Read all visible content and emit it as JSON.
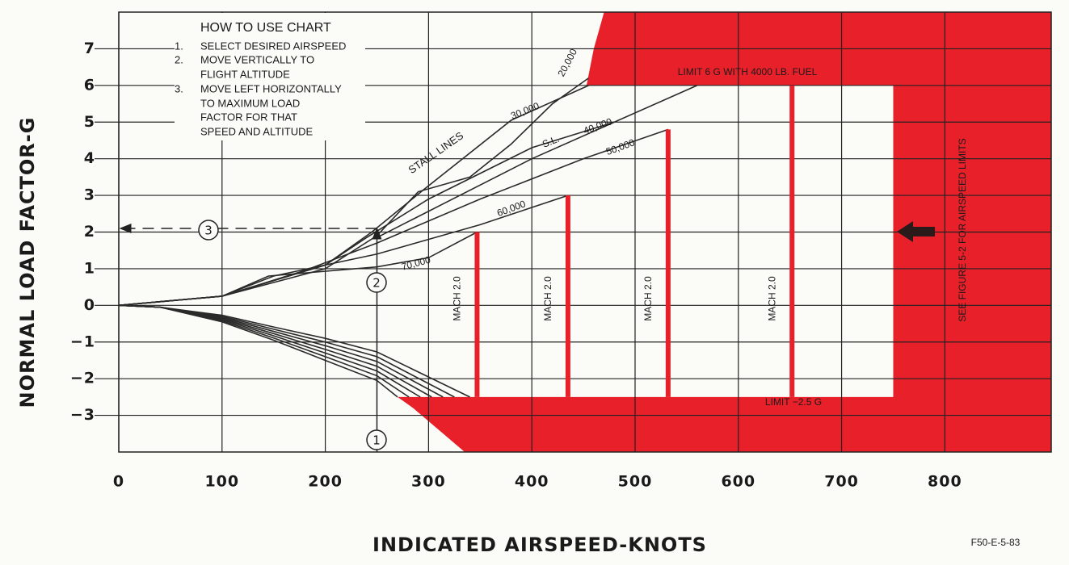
{
  "chart_data": {
    "type": "line",
    "x_label": "INDICATED AIRSPEED-KNOTS",
    "y_label": "NORMAL LOAD FACTOR-G",
    "xlim": [
      0,
      903
    ],
    "ylim": [
      -4,
      8
    ],
    "xticks": [
      0,
      100,
      200,
      300,
      400,
      500,
      600,
      700,
      800
    ],
    "yticks": [
      {
        "value": -3,
        "label": "−3"
      },
      {
        "value": -2,
        "label": "−2"
      },
      {
        "value": -1,
        "label": "−1"
      },
      0,
      1,
      2,
      3,
      4,
      5,
      6,
      7
    ],
    "grid": true,
    "line_color": "#2a2a2a",
    "series": [
      {
        "name": "20,000",
        "x": [
          0,
          100,
          200,
          250,
          290,
          340,
          380,
          420,
          455
        ],
        "values": [
          0,
          0.25,
          1.0,
          1.9,
          3.1,
          3.5,
          4.4,
          5.5,
          6.2
        ]
      },
      {
        "name": "30,000",
        "x": [
          0,
          100,
          200,
          245,
          295,
          380,
          455
        ],
        "values": [
          0,
          0.25,
          1.1,
          2.0,
          3.15,
          5.05,
          6.0
        ]
      },
      {
        "name": "S.L.",
        "x": [
          250,
          400,
          560
        ],
        "values": [
          1.85,
          4.0,
          6.0
        ]
      },
      {
        "name": "40,000",
        "x": [
          0,
          100,
          200,
          240,
          300,
          400,
          480
        ],
        "values": [
          0,
          0.25,
          1.1,
          1.85,
          2.9,
          4.3,
          5.0
        ]
      },
      {
        "name": "50,000",
        "x": [
          0,
          100,
          180,
          250,
          350,
          450,
          532
        ],
        "values": [
          0,
          0.25,
          0.95,
          1.7,
          2.9,
          4.0,
          4.8
        ]
      },
      {
        "name": "60,000",
        "x": [
          0,
          100,
          150,
          250,
          350,
          435
        ],
        "values": [
          0,
          0.25,
          0.8,
          1.4,
          2.2,
          3.0
        ]
      },
      {
        "name": "70,000",
        "x": [
          0,
          100,
          145,
          250,
          300,
          347
        ],
        "values": [
          0,
          0.25,
          0.8,
          1.05,
          1.3,
          2.0
        ]
      }
    ],
    "negative_stall": [
      {
        "x": [
          0,
          40,
          100,
          150,
          200,
          250,
          270
        ],
        "values": [
          0,
          -0.05,
          -0.45,
          -0.95,
          -1.5,
          -2.05,
          -2.5
        ]
      },
      {
        "x": [
          0,
          40,
          100,
          150,
          200,
          250,
          281
        ],
        "values": [
          0,
          -0.05,
          -0.42,
          -0.89,
          -1.4,
          -1.92,
          -2.5
        ]
      },
      {
        "x": [
          0,
          40,
          100,
          150,
          200,
          250,
          292
        ],
        "values": [
          0,
          -0.05,
          -0.39,
          -0.83,
          -1.3,
          -1.79,
          -2.5
        ]
      },
      {
        "x": [
          0,
          40,
          100,
          150,
          200,
          250,
          303
        ],
        "values": [
          0,
          -0.05,
          -0.36,
          -0.77,
          -1.2,
          -1.66,
          -2.5
        ]
      },
      {
        "x": [
          0,
          40,
          100,
          150,
          200,
          250,
          314
        ],
        "values": [
          0,
          -0.05,
          -0.33,
          -0.71,
          -1.1,
          -1.53,
          -2.5
        ]
      },
      {
        "x": [
          0,
          40,
          100,
          150,
          200,
          250,
          325
        ],
        "values": [
          0,
          -0.05,
          -0.3,
          -0.65,
          -1.0,
          -1.4,
          -2.5
        ]
      },
      {
        "x": [
          0,
          40,
          100,
          150,
          200,
          250,
          340
        ],
        "values": [
          0,
          -0.05,
          -0.27,
          -0.59,
          -0.9,
          -1.27,
          -2.5
        ]
      }
    ],
    "limit_region": {
      "color": "#e8202a",
      "x": [
        453,
        460,
        470,
        903,
        903,
        335,
        310,
        285,
        270,
        750,
        750
      ],
      "values": [
        6,
        7,
        8,
        8,
        -4,
        -4,
        -3.4,
        -2.8,
        -2.5,
        -2.5,
        6
      ]
    },
    "limit_low": -2.5,
    "mach_lines": [
      {
        "x": 347,
        "top": 2.0,
        "label": "MACH 2.0"
      },
      {
        "x": 435,
        "top": 3.0,
        "label": "MACH 2.0"
      },
      {
        "x": 532,
        "top": 4.8,
        "label": "MACH 2.0"
      },
      {
        "x": 652,
        "top": 6.0,
        "label": "MACH 2.0"
      }
    ],
    "example": {
      "airspeed": 250,
      "load_factor": 2.1
    },
    "annotations": {
      "stall_lines": "STALL LINES",
      "limit_high": "LIMIT 6 G WITH 4000 LB. FUEL",
      "limit_low": "LIMIT −2.5 G",
      "see_figure": "SEE FIGURE 5-2 FOR AIRSPEED LIMITS",
      "figure_id": "F50-E-5-83"
    },
    "steps": [
      "1",
      "2",
      "3"
    ],
    "instructions": {
      "title": "HOW TO USE CHART",
      "items": [
        {
          "number": "1.",
          "lines": [
            "SELECT DESIRED AIRSPEED"
          ]
        },
        {
          "number": "2.",
          "lines": [
            "MOVE VERTICALLY TO",
            "FLIGHT ALTITUDE"
          ]
        },
        {
          "number": "3.",
          "lines": [
            "MOVE LEFT HORIZONTALLY",
            "TO MAXIMUM LOAD",
            "FACTOR FOR THAT",
            "SPEED AND ALTITUDE"
          ]
        }
      ]
    }
  }
}
